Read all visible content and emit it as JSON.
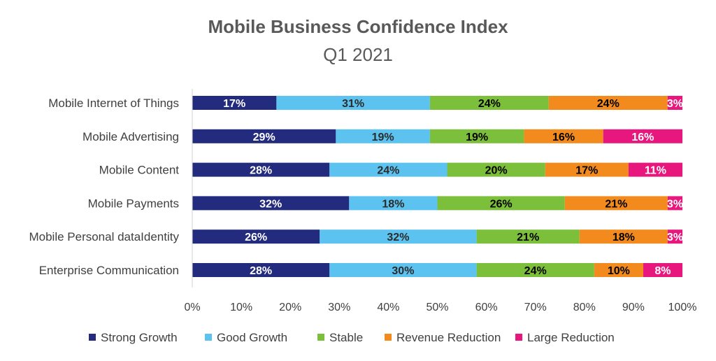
{
  "chart_data": {
    "type": "bar",
    "orientation": "horizontal",
    "stacked": "100%",
    "title": "Mobile Business Confidence Index",
    "subtitle": "Q1 2021",
    "categories": [
      "Mobile Internet of Things",
      "Mobile Advertising",
      "Mobile Content",
      "Mobile Payments",
      "Mobile Personal dataIdentity",
      "Enterprise Communication"
    ],
    "series": [
      {
        "name": "Strong Growth",
        "color": "#232B7E",
        "label_color": "#FFFFFF",
        "values": [
          17,
          29,
          28,
          32,
          26,
          28
        ]
      },
      {
        "name": "Good Growth",
        "color": "#5CC3F0",
        "label_color": "#2B2B2B",
        "values": [
          31,
          19,
          24,
          18,
          32,
          30
        ]
      },
      {
        "name": "Stable",
        "color": "#7BBF3A",
        "label_color": "#000000",
        "values": [
          24,
          19,
          20,
          26,
          21,
          24
        ]
      },
      {
        "name": "Revenue Reduction",
        "color": "#F28A1E",
        "label_color": "#000000",
        "values": [
          24,
          16,
          17,
          21,
          18,
          10
        ]
      },
      {
        "name": "Large Reduction",
        "color": "#E8177D",
        "label_color": "#FFFFFF",
        "values": [
          3,
          16,
          11,
          3,
          3,
          8
        ]
      }
    ],
    "xlim": [
      0,
      100
    ],
    "x_ticks": [
      "0%",
      "10%",
      "20%",
      "30%",
      "40%",
      "50%",
      "60%",
      "70%",
      "80%",
      "90%",
      "100%"
    ],
    "grid": false,
    "legend_position": "bottom"
  }
}
